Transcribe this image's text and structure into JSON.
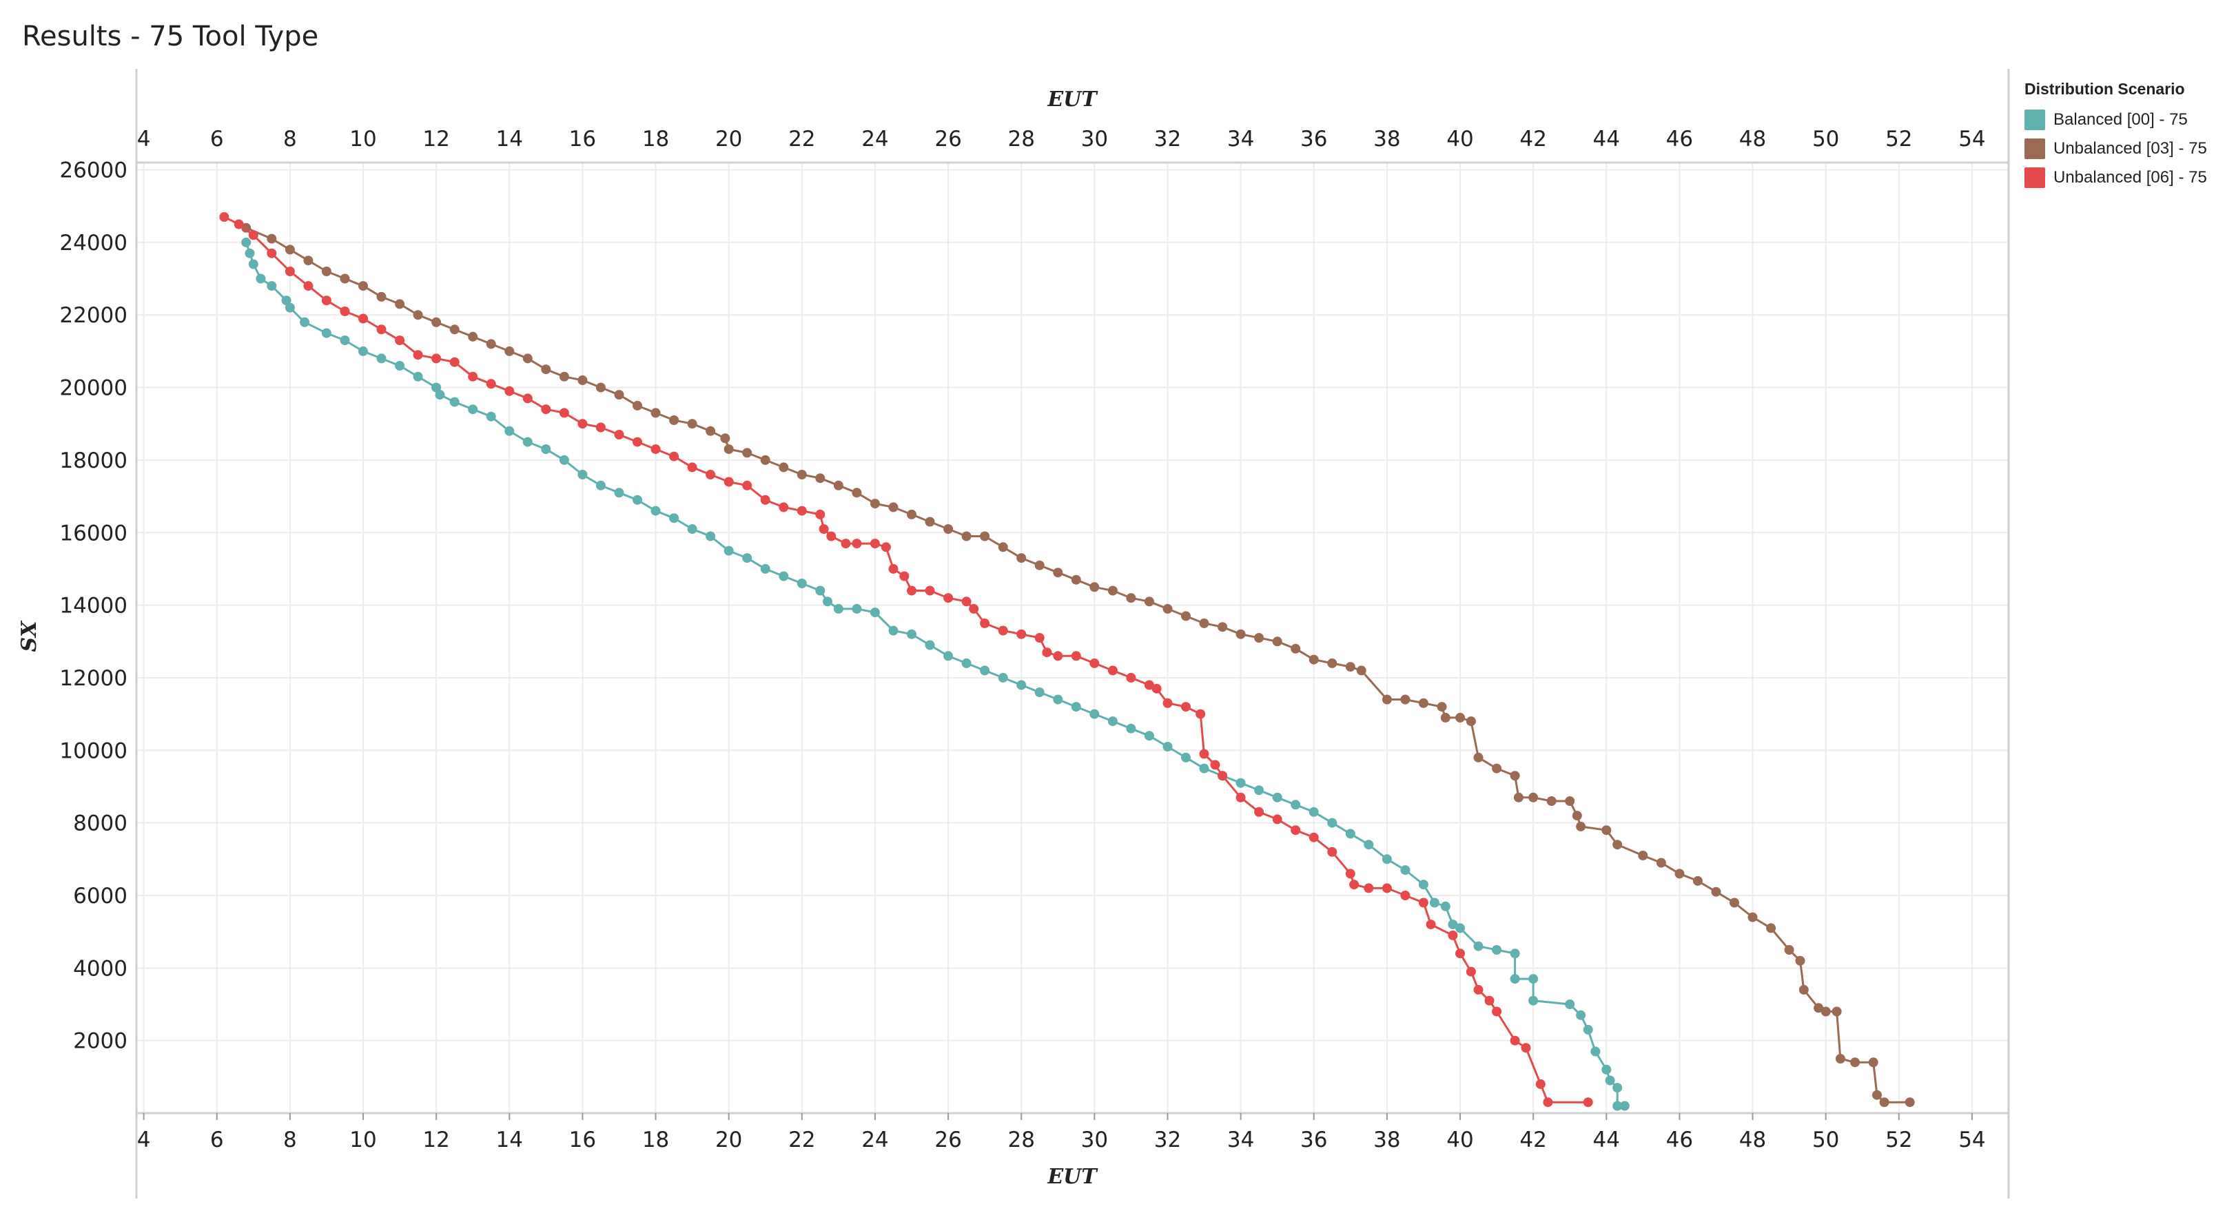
{
  "page_title": "Results - 75 Tool Type",
  "colors": {
    "balanced": "#5eb1ae",
    "unbalanced03": "#9b6a53",
    "unbalanced06": "#e5494c"
  },
  "legend": {
    "title": "Distribution Scenario",
    "items": [
      {
        "label": "Balanced [00] - 75",
        "color": "#5eb1ae"
      },
      {
        "label": "Unbalanced [03] - 75",
        "color": "#9b6a53"
      },
      {
        "label": "Unbalanced [06] - 75",
        "color": "#e5494c"
      }
    ]
  },
  "chart_data": {
    "type": "line",
    "title": "Results - 75 Tool Type",
    "xlabel": "EUT",
    "ylabel": "SX",
    "xlim": [
      3.8,
      55
    ],
    "ylim": [
      0,
      26200
    ],
    "x_ticks": [
      4,
      6,
      8,
      10,
      12,
      14,
      16,
      18,
      20,
      22,
      24,
      26,
      28,
      30,
      32,
      34,
      36,
      38,
      40,
      42,
      44,
      46,
      48,
      50,
      52,
      54
    ],
    "y_ticks": [
      2000,
      4000,
      6000,
      8000,
      10000,
      12000,
      14000,
      16000,
      18000,
      20000,
      22000,
      24000,
      26000
    ],
    "x_axis_positions": [
      "top",
      "bottom"
    ],
    "grid": true,
    "markers": true,
    "legend_position": "right",
    "series": [
      {
        "name": "Balanced [00] - 75",
        "color": "#5eb1ae",
        "points": [
          [
            6.8,
            24000
          ],
          [
            6.9,
            23700
          ],
          [
            7.0,
            23400
          ],
          [
            7.2,
            23000
          ],
          [
            7.5,
            22800
          ],
          [
            7.9,
            22400
          ],
          [
            8.0,
            22200
          ],
          [
            8.4,
            21800
          ],
          [
            9.0,
            21500
          ],
          [
            9.5,
            21300
          ],
          [
            10.0,
            21000
          ],
          [
            10.5,
            20800
          ],
          [
            11.0,
            20600
          ],
          [
            11.5,
            20300
          ],
          [
            12.0,
            20000
          ],
          [
            12.1,
            19800
          ],
          [
            12.5,
            19600
          ],
          [
            13.0,
            19400
          ],
          [
            13.5,
            19200
          ],
          [
            14.0,
            18800
          ],
          [
            14.5,
            18500
          ],
          [
            15.0,
            18300
          ],
          [
            15.5,
            18000
          ],
          [
            16.0,
            17600
          ],
          [
            16.5,
            17300
          ],
          [
            17.0,
            17100
          ],
          [
            17.5,
            16900
          ],
          [
            18.0,
            16600
          ],
          [
            18.5,
            16400
          ],
          [
            19.0,
            16100
          ],
          [
            19.5,
            15900
          ],
          [
            20.0,
            15500
          ],
          [
            20.5,
            15300
          ],
          [
            21.0,
            15000
          ],
          [
            21.5,
            14800
          ],
          [
            22.0,
            14600
          ],
          [
            22.5,
            14400
          ],
          [
            22.7,
            14100
          ],
          [
            23.0,
            13900
          ],
          [
            23.5,
            13900
          ],
          [
            24.0,
            13800
          ],
          [
            24.5,
            13300
          ],
          [
            25.0,
            13200
          ],
          [
            25.5,
            12900
          ],
          [
            26.0,
            12600
          ],
          [
            26.5,
            12400
          ],
          [
            27.0,
            12200
          ],
          [
            27.5,
            12000
          ],
          [
            28.0,
            11800
          ],
          [
            28.5,
            11600
          ],
          [
            29.0,
            11400
          ],
          [
            29.5,
            11200
          ],
          [
            30.0,
            11000
          ],
          [
            30.5,
            10800
          ],
          [
            31.0,
            10600
          ],
          [
            31.5,
            10400
          ],
          [
            32.0,
            10100
          ],
          [
            32.5,
            9800
          ],
          [
            33.0,
            9500
          ],
          [
            33.5,
            9300
          ],
          [
            34.0,
            9100
          ],
          [
            34.5,
            8900
          ],
          [
            35.0,
            8700
          ],
          [
            35.5,
            8500
          ],
          [
            36.0,
            8300
          ],
          [
            36.5,
            8000
          ],
          [
            37.0,
            7700
          ],
          [
            37.5,
            7400
          ],
          [
            38.0,
            7000
          ],
          [
            38.5,
            6700
          ],
          [
            39.0,
            6300
          ],
          [
            39.3,
            5800
          ],
          [
            39.6,
            5700
          ],
          [
            39.8,
            5200
          ],
          [
            40.0,
            5100
          ],
          [
            40.5,
            4600
          ],
          [
            41.0,
            4500
          ],
          [
            41.5,
            4400
          ],
          [
            41.5,
            3700
          ],
          [
            42.0,
            3700
          ],
          [
            42.0,
            3100
          ],
          [
            43.0,
            3000
          ],
          [
            43.3,
            2700
          ],
          [
            43.5,
            2300
          ],
          [
            43.7,
            1700
          ],
          [
            44.0,
            1200
          ],
          [
            44.1,
            900
          ],
          [
            44.3,
            700
          ],
          [
            44.3,
            200
          ],
          [
            44.5,
            200
          ]
        ]
      },
      {
        "name": "Unbalanced [03] - 75",
        "color": "#9b6a53",
        "points": [
          [
            6.8,
            24400
          ],
          [
            7.5,
            24100
          ],
          [
            8.0,
            23800
          ],
          [
            8.5,
            23500
          ],
          [
            9.0,
            23200
          ],
          [
            9.5,
            23000
          ],
          [
            10.0,
            22800
          ],
          [
            10.5,
            22500
          ],
          [
            11.0,
            22300
          ],
          [
            11.5,
            22000
          ],
          [
            12.0,
            21800
          ],
          [
            12.5,
            21600
          ],
          [
            13.0,
            21400
          ],
          [
            13.5,
            21200
          ],
          [
            14.0,
            21000
          ],
          [
            14.5,
            20800
          ],
          [
            15.0,
            20500
          ],
          [
            15.5,
            20300
          ],
          [
            16.0,
            20200
          ],
          [
            16.5,
            20000
          ],
          [
            17.0,
            19800
          ],
          [
            17.5,
            19500
          ],
          [
            18.0,
            19300
          ],
          [
            18.5,
            19100
          ],
          [
            19.0,
            19000
          ],
          [
            19.5,
            18800
          ],
          [
            19.9,
            18600
          ],
          [
            20.0,
            18300
          ],
          [
            20.5,
            18200
          ],
          [
            21.0,
            18000
          ],
          [
            21.5,
            17800
          ],
          [
            22.0,
            17600
          ],
          [
            22.5,
            17500
          ],
          [
            23.0,
            17300
          ],
          [
            23.5,
            17100
          ],
          [
            24.0,
            16800
          ],
          [
            24.5,
            16700
          ],
          [
            25.0,
            16500
          ],
          [
            25.5,
            16300
          ],
          [
            26.0,
            16100
          ],
          [
            26.5,
            15900
          ],
          [
            27.0,
            15900
          ],
          [
            27.5,
            15600
          ],
          [
            28.0,
            15300
          ],
          [
            28.5,
            15100
          ],
          [
            29.0,
            14900
          ],
          [
            29.5,
            14700
          ],
          [
            30.0,
            14500
          ],
          [
            30.5,
            14400
          ],
          [
            31.0,
            14200
          ],
          [
            31.5,
            14100
          ],
          [
            32.0,
            13900
          ],
          [
            32.5,
            13700
          ],
          [
            33.0,
            13500
          ],
          [
            33.5,
            13400
          ],
          [
            34.0,
            13200
          ],
          [
            34.5,
            13100
          ],
          [
            35.0,
            13000
          ],
          [
            35.5,
            12800
          ],
          [
            36.0,
            12500
          ],
          [
            36.5,
            12400
          ],
          [
            37.0,
            12300
          ],
          [
            37.3,
            12200
          ],
          [
            38.0,
            11400
          ],
          [
            38.5,
            11400
          ],
          [
            39.0,
            11300
          ],
          [
            39.5,
            11200
          ],
          [
            39.6,
            10900
          ],
          [
            40.0,
            10900
          ],
          [
            40.3,
            10800
          ],
          [
            40.5,
            9800
          ],
          [
            41.0,
            9500
          ],
          [
            41.5,
            9300
          ],
          [
            41.6,
            8700
          ],
          [
            42.0,
            8700
          ],
          [
            42.5,
            8600
          ],
          [
            43.0,
            8600
          ],
          [
            43.2,
            8200
          ],
          [
            43.3,
            7900
          ],
          [
            44.0,
            7800
          ],
          [
            44.3,
            7400
          ],
          [
            45.0,
            7100
          ],
          [
            45.5,
            6900
          ],
          [
            46.0,
            6600
          ],
          [
            46.5,
            6400
          ],
          [
            47.0,
            6100
          ],
          [
            47.5,
            5800
          ],
          [
            48.0,
            5400
          ],
          [
            48.5,
            5100
          ],
          [
            49.0,
            4500
          ],
          [
            49.3,
            4200
          ],
          [
            49.4,
            3400
          ],
          [
            49.8,
            2900
          ],
          [
            50.0,
            2800
          ],
          [
            50.3,
            2800
          ],
          [
            50.4,
            1500
          ],
          [
            50.8,
            1400
          ],
          [
            51.3,
            1400
          ],
          [
            51.4,
            500
          ],
          [
            51.6,
            300
          ],
          [
            52.3,
            300
          ]
        ]
      },
      {
        "name": "Unbalanced [06] - 75",
        "color": "#e5494c",
        "points": [
          [
            6.2,
            24700
          ],
          [
            6.6,
            24500
          ],
          [
            7.0,
            24200
          ],
          [
            7.5,
            23700
          ],
          [
            8.0,
            23200
          ],
          [
            8.5,
            22800
          ],
          [
            9.0,
            22400
          ],
          [
            9.5,
            22100
          ],
          [
            10.0,
            21900
          ],
          [
            10.5,
            21600
          ],
          [
            11.0,
            21300
          ],
          [
            11.5,
            20900
          ],
          [
            12.0,
            20800
          ],
          [
            12.5,
            20700
          ],
          [
            13.0,
            20300
          ],
          [
            13.5,
            20100
          ],
          [
            14.0,
            19900
          ],
          [
            14.5,
            19700
          ],
          [
            15.0,
            19400
          ],
          [
            15.5,
            19300
          ],
          [
            16.0,
            19000
          ],
          [
            16.5,
            18900
          ],
          [
            17.0,
            18700
          ],
          [
            17.5,
            18500
          ],
          [
            18.0,
            18300
          ],
          [
            18.5,
            18100
          ],
          [
            19.0,
            17800
          ],
          [
            19.5,
            17600
          ],
          [
            20.0,
            17400
          ],
          [
            20.5,
            17300
          ],
          [
            21.0,
            16900
          ],
          [
            21.5,
            16700
          ],
          [
            22.0,
            16600
          ],
          [
            22.5,
            16500
          ],
          [
            22.6,
            16100
          ],
          [
            22.8,
            15900
          ],
          [
            23.2,
            15700
          ],
          [
            23.5,
            15700
          ],
          [
            24.0,
            15700
          ],
          [
            24.3,
            15600
          ],
          [
            24.5,
            15000
          ],
          [
            24.8,
            14800
          ],
          [
            25.0,
            14400
          ],
          [
            25.5,
            14400
          ],
          [
            26.0,
            14200
          ],
          [
            26.5,
            14100
          ],
          [
            26.7,
            13900
          ],
          [
            27.0,
            13500
          ],
          [
            27.5,
            13300
          ],
          [
            28.0,
            13200
          ],
          [
            28.5,
            13100
          ],
          [
            28.7,
            12700
          ],
          [
            29.0,
            12600
          ],
          [
            29.5,
            12600
          ],
          [
            30.0,
            12400
          ],
          [
            30.5,
            12200
          ],
          [
            31.0,
            12000
          ],
          [
            31.5,
            11800
          ],
          [
            31.7,
            11700
          ],
          [
            32.0,
            11300
          ],
          [
            32.5,
            11200
          ],
          [
            32.9,
            11000
          ],
          [
            33.0,
            9900
          ],
          [
            33.3,
            9600
          ],
          [
            33.5,
            9300
          ],
          [
            34.0,
            8700
          ],
          [
            34.5,
            8300
          ],
          [
            35.0,
            8100
          ],
          [
            35.5,
            7800
          ],
          [
            36.0,
            7600
          ],
          [
            36.5,
            7200
          ],
          [
            37.0,
            6600
          ],
          [
            37.1,
            6300
          ],
          [
            37.5,
            6200
          ],
          [
            38.0,
            6200
          ],
          [
            38.5,
            6000
          ],
          [
            39.0,
            5800
          ],
          [
            39.2,
            5200
          ],
          [
            39.8,
            4900
          ],
          [
            40.0,
            4400
          ],
          [
            40.3,
            3900
          ],
          [
            40.5,
            3400
          ],
          [
            40.8,
            3100
          ],
          [
            41.0,
            2800
          ],
          [
            41.5,
            2000
          ],
          [
            41.8,
            1800
          ],
          [
            42.2,
            800
          ],
          [
            42.4,
            300
          ],
          [
            43.5,
            300
          ]
        ]
      }
    ]
  }
}
